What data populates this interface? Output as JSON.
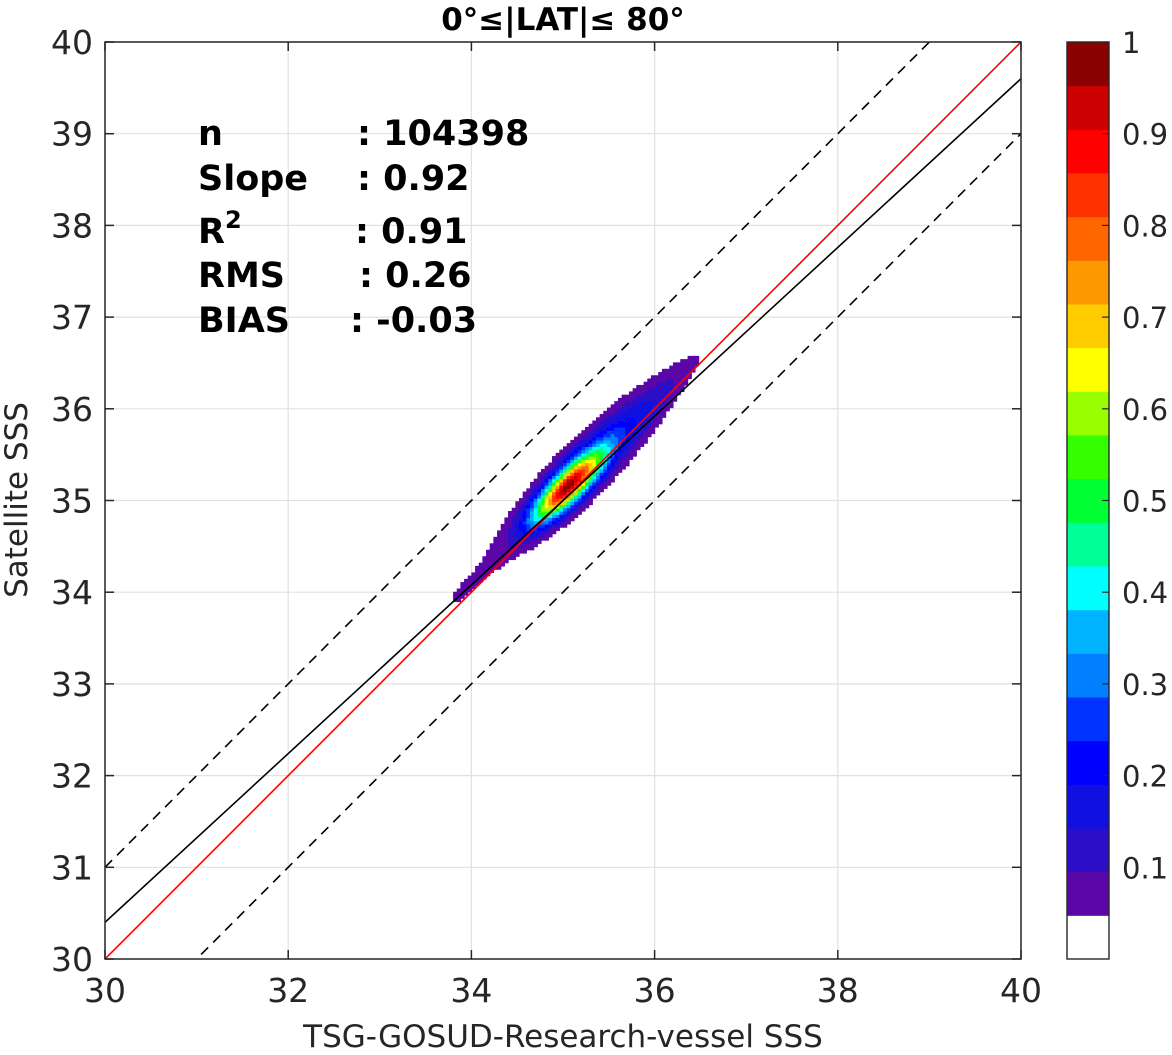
{
  "chart_data": {
    "type": "contour",
    "title": "0°≤|LAT|≤ 80°",
    "xlabel": "TSG-GOSUD-Research-vessel SSS",
    "ylabel": "Satellite SSS",
    "xlim": [
      30,
      40
    ],
    "ylim": [
      30,
      40
    ],
    "xticks": [
      "30",
      "32",
      "34",
      "36",
      "38",
      "40"
    ],
    "yticks": [
      "30",
      "31",
      "32",
      "33",
      "34",
      "35",
      "36",
      "37",
      "38",
      "39",
      "40"
    ],
    "grid": true,
    "stats": [
      {
        "label": "n",
        "value": ": 104398"
      },
      {
        "label": "Slope",
        "value": ": 0.92"
      },
      {
        "label": "R",
        "sup": "2",
        "value": ": 0.91"
      },
      {
        "label": "RMS",
        "value": ": 0.26"
      },
      {
        "label": "BIAS",
        "value": ": -0.03"
      }
    ],
    "lines": [
      {
        "role": "one-to-one",
        "color": "#ff0000",
        "slope": 1.0,
        "intercept": 0.0,
        "dashed": false
      },
      {
        "role": "regression",
        "color": "#000000",
        "slope": 0.92,
        "intercept": 2.8,
        "dashed": false
      },
      {
        "role": "upper-bound",
        "color": "#000000",
        "slope": 1.0,
        "intercept": 1.0,
        "dashed": true
      },
      {
        "role": "lower-bound",
        "color": "#000000",
        "slope": 1.0,
        "intercept": -1.0,
        "dashed": true
      }
    ],
    "density_peak": {
      "x": 35.05,
      "y": 35.15
    },
    "contour_levels": [
      0.05,
      0.15,
      0.25,
      0.35,
      0.45,
      0.55,
      0.65,
      0.75,
      0.85,
      0.95
    ],
    "colorbar": {
      "ticks": [
        "0.1",
        "0.2",
        "0.3",
        "0.4",
        "0.5",
        "0.6",
        "0.7",
        "0.8",
        "0.9",
        "1"
      ],
      "range": [
        0,
        1
      ],
      "colors": [
        "#ffffff",
        "#5b07a8",
        "#2c0ec8",
        "#1010e0",
        "#0000ff",
        "#0033ff",
        "#0080ff",
        "#00b3ff",
        "#00ffff",
        "#00ff99",
        "#00ff33",
        "#33ff00",
        "#99ff00",
        "#ffff00",
        "#ffcc00",
        "#ff9900",
        "#ff6600",
        "#ff3300",
        "#ff0000",
        "#cc0000",
        "#8b0000"
      ]
    }
  }
}
